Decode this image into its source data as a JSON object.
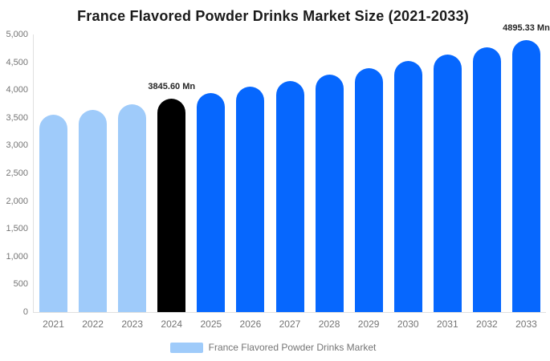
{
  "chart_data": {
    "type": "bar",
    "title": "France Flavored Powder Drinks Market Size (2021-2033)",
    "unit": "Mn",
    "xlabel": "",
    "ylabel": "",
    "ylim": [
      0,
      5000
    ],
    "grid": false,
    "legend_position": "bottom",
    "categories": [
      "2021",
      "2022",
      "2023",
      "2024",
      "2025",
      "2026",
      "2027",
      "2028",
      "2029",
      "2030",
      "2031",
      "2032",
      "2033"
    ],
    "series": [
      {
        "name": "France Flavored Powder Drinks Market",
        "values": [
          3548,
          3645,
          3744,
          3845.6,
          3950,
          4058,
          4168,
          4281,
          4397,
          4517,
          4640,
          4766,
          4895.33
        ]
      }
    ],
    "bar_colors": [
      "#9fcbfa",
      "#9fcbfa",
      "#9fcbfa",
      "#000000",
      "#0667fe",
      "#0667fe",
      "#0667fe",
      "#0667fe",
      "#0667fe",
      "#0667fe",
      "#0667fe",
      "#0667fe",
      "#0667fe"
    ],
    "labeled_points": [
      {
        "category": "2024",
        "index": 3,
        "text": "3845.60 Mn"
      },
      {
        "category": "2033",
        "index": 12,
        "text": "4895.33 Mn"
      }
    ],
    "ytick_values": [
      0,
      500,
      1000,
      1500,
      2000,
      2500,
      3000,
      3500,
      4000,
      4500,
      5000
    ],
    "ytick_labels": [
      "0",
      "500",
      "1,000",
      "1,500",
      "2,000",
      "2,500",
      "3,000",
      "3,500",
      "4,000",
      "4,500",
      "5,000"
    ]
  },
  "legend": {
    "swatch_color": "#9fcbfa",
    "label": "France Flavored Powder Drinks Market"
  },
  "colors": {
    "background": "#ffffff",
    "historical_bar": "#9fcbfa",
    "base_year_bar": "#000000",
    "forecast_bar": "#0667fe",
    "axis_line": "#e0e0e0",
    "tick_text": "#757575",
    "title_text": "#1a1a1a",
    "data_label_text": "#262626"
  }
}
